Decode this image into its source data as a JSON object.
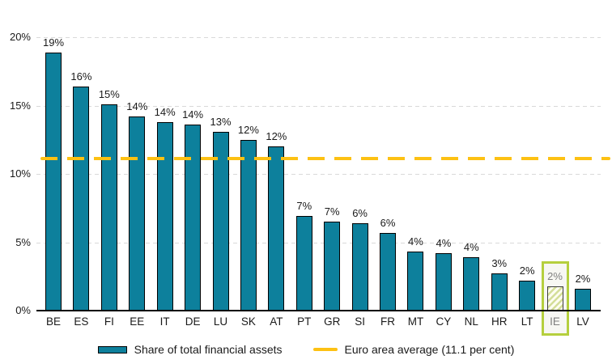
{
  "chart_data": {
    "type": "bar",
    "title": "",
    "categories": [
      "BE",
      "ES",
      "FI",
      "EE",
      "IT",
      "DE",
      "LU",
      "SK",
      "AT",
      "PT",
      "GR",
      "SI",
      "FR",
      "MT",
      "CY",
      "NL",
      "HR",
      "LT",
      "IE",
      "LV"
    ],
    "values": [
      18.9,
      16.4,
      15.1,
      14.2,
      13.8,
      13.6,
      13.1,
      12.5,
      12.0,
      6.9,
      6.5,
      6.4,
      5.7,
      4.3,
      4.2,
      3.9,
      2.7,
      2.2,
      1.8,
      1.6
    ],
    "bar_labels": [
      "19%",
      "16%",
      "15%",
      "14%",
      "14%",
      "14%",
      "13%",
      "12%",
      "12%",
      "7%",
      "7%",
      "6%",
      "6%",
      "4%",
      "4%",
      "4%",
      "3%",
      "2%",
      "2%",
      "2%"
    ],
    "highlighted_category": "IE",
    "ylim": [
      0,
      20
    ],
    "y_ticks": [
      {
        "value": 0,
        "label": "0%"
      },
      {
        "value": 5,
        "label": "5%"
      },
      {
        "value": 10,
        "label": "10%"
      },
      {
        "value": 15,
        "label": "15%"
      },
      {
        "value": 20,
        "label": "20%"
      }
    ],
    "average_line": {
      "value": 11.1,
      "label": "Euro area average (11.1 per cent)"
    },
    "grid": "horizontal dashed",
    "legend_position": "bottom-center",
    "legend": [
      {
        "type": "bar",
        "label": "Share of total financial assets"
      },
      {
        "type": "line",
        "label": "Euro area average (11.1 per cent)"
      }
    ],
    "colors": {
      "bar_fill": "#0d809c",
      "bar_border": "#000000",
      "average_line": "#fdc113",
      "gridline": "#d9d9d9",
      "label_text": "#1a1a1a",
      "muted_text": "#7f7f7f",
      "highlight_box_border": "#b5cf3e",
      "highlight_box_fill": "#f7f7f3",
      "highlight_hatch": "#d4de99",
      "highlight_hatch_bg": "#fdfdf1"
    }
  }
}
